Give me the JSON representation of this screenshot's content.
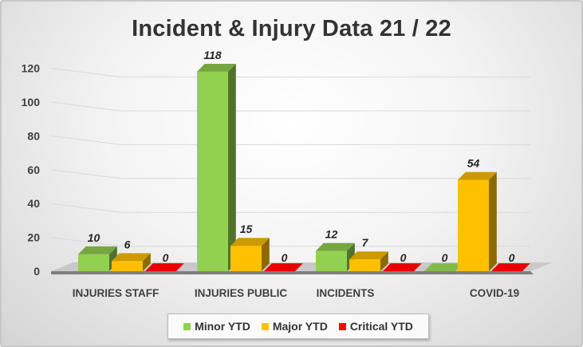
{
  "chart_data": {
    "type": "bar",
    "title": "Incident & Injury Data 21 / 22",
    "categories": [
      "INJURIES STAFF",
      "INJURIES PUBLIC",
      "INCIDENTS",
      "COVID-19"
    ],
    "series": [
      {
        "name": "Minor YTD",
        "color": "#92D050",
        "values": [
          10,
          118,
          12,
          0
        ]
      },
      {
        "name": "Major YTD",
        "color": "#FFC000",
        "values": [
          6,
          15,
          7,
          54
        ]
      },
      {
        "name": "Critical YTD",
        "color": "#FF0000",
        "values": [
          0,
          0,
          0,
          0
        ]
      }
    ],
    "yticks": [
      "0",
      "20",
      "40",
      "60",
      "80",
      "100",
      "120"
    ],
    "ylim": [
      0,
      120
    ],
    "grid": true,
    "legend_position": "bottom",
    "style": "3d-clustered-column"
  }
}
